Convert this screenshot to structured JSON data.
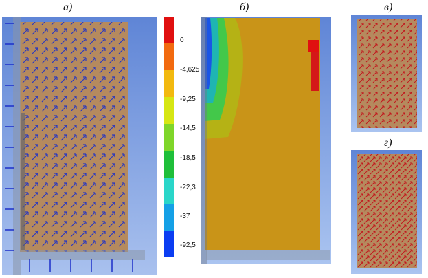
{
  "panels": [
    {
      "label": "а)"
    },
    {
      "label": "б)"
    },
    {
      "label": "в)"
    },
    {
      "label": "г)"
    }
  ],
  "legend": {
    "values": [
      "0",
      "-4,625",
      "-9,25",
      "-14,5",
      "-18,5",
      "-22,3",
      "-37",
      "-92,5"
    ],
    "colors": [
      "#e01010",
      "#f26a0f",
      "#f2b90f",
      "#d6e614",
      "#7fd62a",
      "#1fbf3a",
      "#2ad6c9",
      "#15a0e6",
      "#0b3df2"
    ]
  },
  "colors": {
    "background_blue": "#6b8fd6",
    "model_brown": "#b58a5e",
    "fill_orange": "#c99418",
    "arrow_blue": "#1c2fc9",
    "arrow_red": "#c2181e"
  }
}
